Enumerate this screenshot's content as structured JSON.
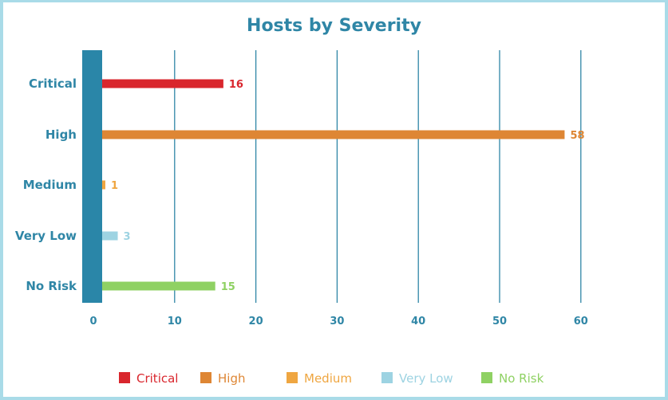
{
  "chart_data": {
    "type": "bar",
    "orientation": "horizontal",
    "title": "Hosts by Severity",
    "categories": [
      "Critical",
      "High",
      "Medium",
      "Very Low",
      "No Risk"
    ],
    "values": [
      16,
      58,
      1,
      3,
      15
    ],
    "colors": [
      "#d9262d",
      "#de8634",
      "#efa641",
      "#9dd3e2",
      "#8fd163"
    ],
    "xlim": [
      0,
      60
    ],
    "xticks": [
      "0",
      "10",
      "20",
      "30",
      "40",
      "50",
      "60"
    ],
    "grid": true,
    "legend": {
      "position": "bottom",
      "entries": [
        "Critical",
        "High",
        "Medium",
        "Very Low",
        "No Risk"
      ]
    }
  }
}
